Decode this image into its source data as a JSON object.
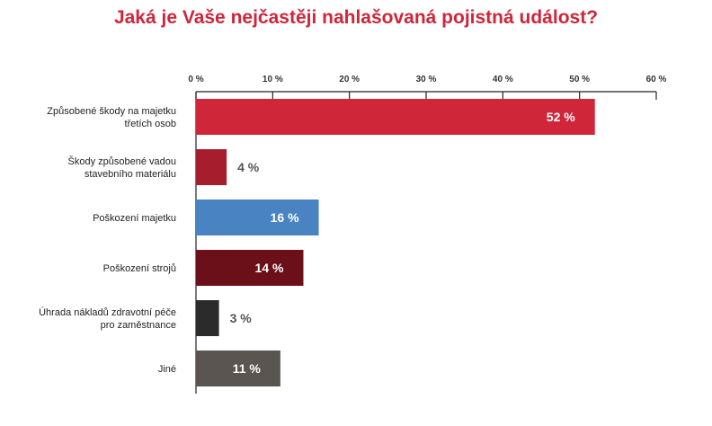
{
  "chart_data": {
    "type": "bar",
    "orientation": "horizontal",
    "title": "Jaká je Vaše nejčastěji nahlašovaná pojistná událost?",
    "xlabel": "",
    "ylabel": "",
    "xlim": [
      0,
      60
    ],
    "xticks": [
      0,
      10,
      20,
      30,
      40,
      50,
      60
    ],
    "xtick_labels": [
      "0 %",
      "10 %",
      "20 %",
      "30 %",
      "40 %",
      "50 %",
      "60 %"
    ],
    "categories": [
      [
        "Způsobené škody na majetku",
        "třetích osob"
      ],
      [
        "Škody způsobené vadou",
        "stavebního materiálu"
      ],
      [
        "Poškození majetku"
      ],
      [
        "Poškození strojů"
      ],
      [
        "Úhrada nákladů zdravotní péče",
        "pro zaměstnance"
      ],
      [
        "Jiné"
      ]
    ],
    "values": [
      52,
      4,
      16,
      14,
      3,
      11
    ],
    "value_labels": [
      "52 %",
      "4 %",
      "16 %",
      "14 %",
      "3 %",
      "11 %"
    ],
    "colors": [
      "#d0263a",
      "#a61e2d",
      "#4a83c1",
      "#6b0f18",
      "#2b2b2b",
      "#5a5550"
    ],
    "label_inside": [
      true,
      false,
      true,
      true,
      false,
      true
    ],
    "grid": false
  }
}
